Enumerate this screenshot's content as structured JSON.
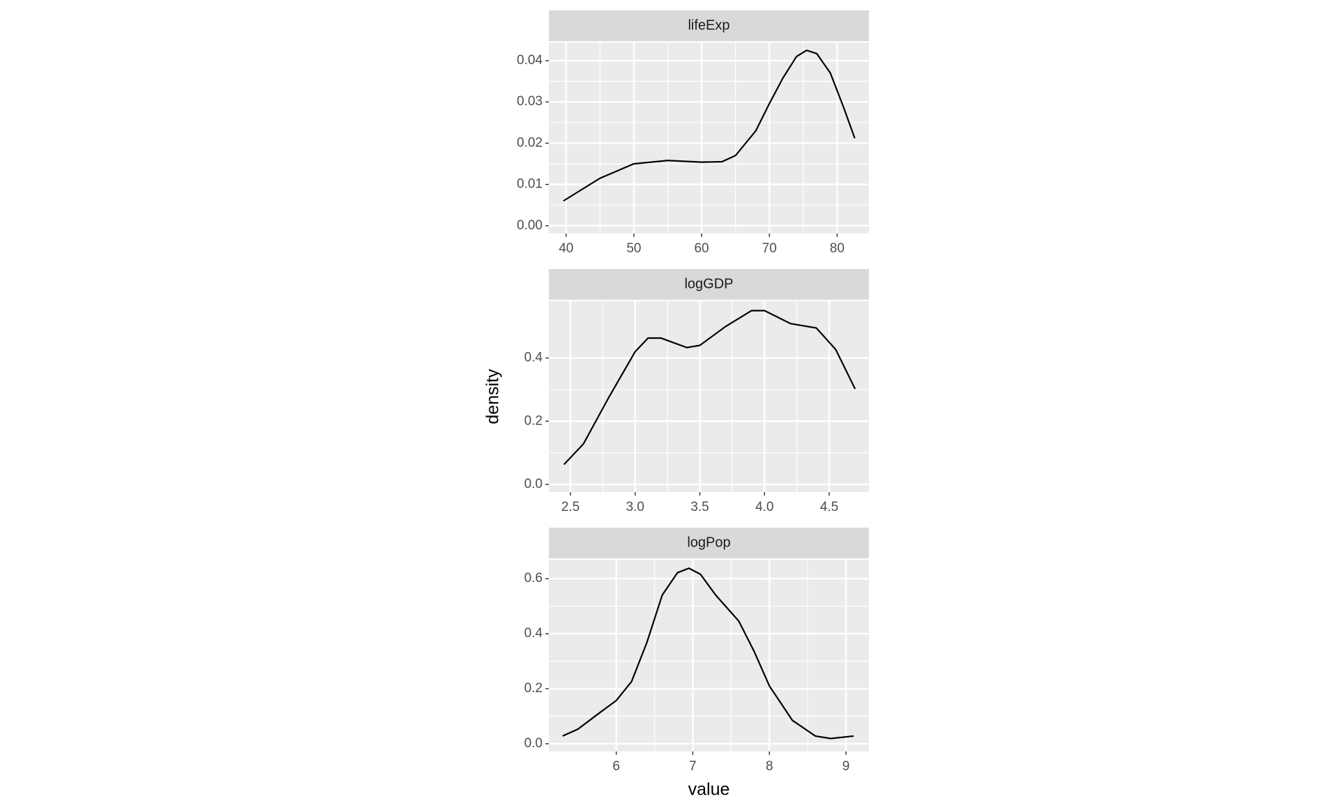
{
  "chart_data": [
    {
      "type": "line",
      "title": "lifeExp",
      "color": "#000000",
      "x": [
        39.6,
        45,
        50,
        55,
        60,
        63,
        65,
        68,
        70,
        72,
        74,
        75.5,
        77,
        79,
        81,
        82.6
      ],
      "values": [
        0.006,
        0.0115,
        0.015,
        0.0158,
        0.0154,
        0.0155,
        0.017,
        0.023,
        0.0296,
        0.0358,
        0.041,
        0.0425,
        0.0417,
        0.037,
        0.0285,
        0.0212
      ],
      "xlim": [
        37.45,
        84.7
      ],
      "xticks": [
        40,
        50,
        60,
        70,
        80
      ],
      "ylim": [
        -0.0019,
        0.0444
      ],
      "yticks": [
        {
          "value": 0,
          "label": "0.00"
        },
        0.01,
        0.02,
        0.03,
        0.04
      ],
      "grid": true
    },
    {
      "type": "line",
      "title": "logGDP",
      "color": "#000000",
      "ylabel": "density",
      "x": [
        2.45,
        2.6,
        2.8,
        3.0,
        3.1,
        3.2,
        3.4,
        3.5,
        3.7,
        3.9,
        4.0,
        4.2,
        4.4,
        4.55,
        4.7
      ],
      "values": [
        0.063,
        0.128,
        0.278,
        0.42,
        0.463,
        0.463,
        0.433,
        0.44,
        0.5,
        0.55,
        0.55,
        0.509,
        0.495,
        0.427,
        0.302
      ],
      "xlim": [
        2.333,
        4.807
      ],
      "xticks": [
        2.5,
        {
          "value": 3,
          "label": "3.0"
        },
        3.5,
        {
          "value": 4,
          "label": "4.0"
        },
        4.5
      ],
      "ylim": [
        -0.0245,
        0.58
      ],
      "yticks": [
        {
          "value": 0,
          "label": "0.0"
        },
        0.2,
        0.4
      ],
      "grid": true
    },
    {
      "type": "line",
      "title": "logPop",
      "color": "#000000",
      "xlabel": "value",
      "x": [
        5.3,
        5.5,
        5.8,
        6.0,
        6.2,
        6.4,
        6.6,
        6.8,
        6.95,
        7.1,
        7.3,
        7.6,
        7.8,
        8.0,
        8.3,
        8.6,
        8.8,
        9.1
      ],
      "values": [
        0.028,
        0.053,
        0.116,
        0.157,
        0.226,
        0.368,
        0.54,
        0.622,
        0.638,
        0.616,
        0.54,
        0.446,
        0.336,
        0.21,
        0.085,
        0.028,
        0.019,
        0.028
      ],
      "xlim": [
        5.12,
        9.3
      ],
      "xticks": [
        6,
        7,
        8,
        9
      ],
      "ylim": [
        -0.028,
        0.669
      ],
      "yticks": [
        {
          "value": 0,
          "label": "0.0"
        },
        0.2,
        0.4,
        0.6
      ],
      "grid": true
    }
  ]
}
